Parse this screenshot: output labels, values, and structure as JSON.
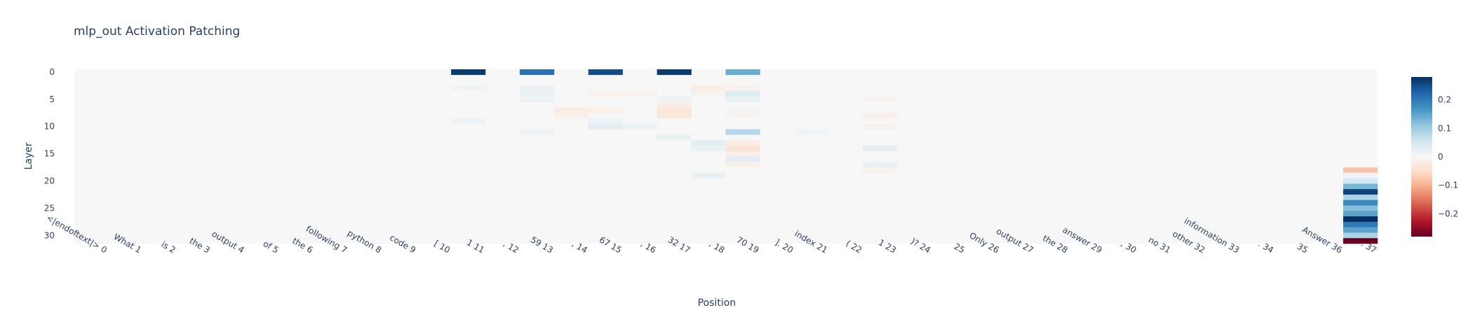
{
  "chart_data": {
    "type": "heatmap",
    "title": "mlp_out Activation Patching",
    "xlabel": "Position",
    "ylabel": "Layer",
    "x_categories": [
      "<|endoftext|> 0",
      "What 1",
      "is 2",
      "the 3",
      "output 4",
      "of 5",
      "the 6",
      "following 7",
      "python 8",
      "code 9",
      "[ 10",
      "1 11",
      ", 12",
      "59 13",
      ", 14",
      "67 15",
      ", 16",
      "32 17",
      ", 18",
      "70 19",
      "]. 20",
      "index 21",
      "( 22",
      "1 23",
      ")? 24",
      "25",
      "Only 26",
      "output 27",
      "the 28",
      "answer 29",
      ", 30",
      "no 31",
      "other 32",
      "information 33",
      ". 34",
      "35",
      "Answer 36",
      ": 37"
    ],
    "y_range": [
      0,
      31
    ],
    "y_ticks": [
      "0",
      "5",
      "10",
      "15",
      "20",
      "25",
      "30"
    ],
    "colorscale": "RdBu",
    "zrange": [
      -0.28,
      0.28
    ],
    "colorbar_ticks": [
      "0.2",
      "0.1",
      "0",
      "−0.1",
      "−0.2"
    ],
    "colorbar_tick_values": [
      0.2,
      0.1,
      0,
      -0.1,
      -0.2
    ],
    "cells": [
      {
        "pos": 11,
        "layer": 0,
        "value": 0.27
      },
      {
        "pos": 13,
        "layer": 0,
        "value": 0.21
      },
      {
        "pos": 15,
        "layer": 0,
        "value": 0.25
      },
      {
        "pos": 17,
        "layer": 0,
        "value": 0.27
      },
      {
        "pos": 19,
        "layer": 0,
        "value": 0.14
      },
      {
        "pos": 11,
        "layer": 3,
        "value": 0.01
      },
      {
        "pos": 13,
        "layer": 3,
        "value": 0.02
      },
      {
        "pos": 13,
        "layer": 4,
        "value": 0.02
      },
      {
        "pos": 13,
        "layer": 5,
        "value": 0.015
      },
      {
        "pos": 18,
        "layer": 3,
        "value": -0.02
      },
      {
        "pos": 18,
        "layer": 4,
        "value": -0.01
      },
      {
        "pos": 19,
        "layer": 3,
        "value": -0.01
      },
      {
        "pos": 19,
        "layer": 4,
        "value": 0.04
      },
      {
        "pos": 19,
        "layer": 5,
        "value": 0.02
      },
      {
        "pos": 16,
        "layer": 4,
        "value": -0.01
      },
      {
        "pos": 15,
        "layer": 4,
        "value": -0.015
      },
      {
        "pos": 17,
        "layer": 5,
        "value": 0.015
      },
      {
        "pos": 17,
        "layer": 6,
        "value": -0.02
      },
      {
        "pos": 17,
        "layer": 7,
        "value": -0.035
      },
      {
        "pos": 17,
        "layer": 8,
        "value": -0.03
      },
      {
        "pos": 14,
        "layer": 7,
        "value": -0.02
      },
      {
        "pos": 14,
        "layer": 8,
        "value": -0.015
      },
      {
        "pos": 15,
        "layer": 7,
        "value": -0.015
      },
      {
        "pos": 15,
        "layer": 9,
        "value": 0.015
      },
      {
        "pos": 15,
        "layer": 10,
        "value": 0.03
      },
      {
        "pos": 16,
        "layer": 10,
        "value": 0.02
      },
      {
        "pos": 19,
        "layer": 7,
        "value": 0.01
      },
      {
        "pos": 19,
        "layer": 8,
        "value": -0.01
      },
      {
        "pos": 19,
        "layer": 11,
        "value": 0.08
      },
      {
        "pos": 19,
        "layer": 13,
        "value": -0.02
      },
      {
        "pos": 19,
        "layer": 14,
        "value": -0.04
      },
      {
        "pos": 19,
        "layer": 15,
        "value": -0.02
      },
      {
        "pos": 19,
        "layer": 16,
        "value": 0.03
      },
      {
        "pos": 19,
        "layer": 17,
        "value": -0.015
      },
      {
        "pos": 18,
        "layer": 13,
        "value": 0.03
      },
      {
        "pos": 18,
        "layer": 14,
        "value": 0.02
      },
      {
        "pos": 18,
        "layer": 19,
        "value": 0.02
      },
      {
        "pos": 11,
        "layer": 9,
        "value": 0.015
      },
      {
        "pos": 13,
        "layer": 11,
        "value": 0.015
      },
      {
        "pos": 17,
        "layer": 12,
        "value": 0.02
      },
      {
        "pos": 21,
        "layer": 11,
        "value": 0.01
      },
      {
        "pos": 23,
        "layer": 5,
        "value": -0.01
      },
      {
        "pos": 23,
        "layer": 8,
        "value": -0.015
      },
      {
        "pos": 23,
        "layer": 10,
        "value": -0.01
      },
      {
        "pos": 23,
        "layer": 14,
        "value": 0.03
      },
      {
        "pos": 23,
        "layer": 17,
        "value": 0.02
      },
      {
        "pos": 23,
        "layer": 18,
        "value": -0.015
      },
      {
        "pos": 37,
        "layer": 18,
        "value": -0.08
      },
      {
        "pos": 37,
        "layer": 19,
        "value": 0.01
      },
      {
        "pos": 37,
        "layer": 20,
        "value": 0.05
      },
      {
        "pos": 37,
        "layer": 21,
        "value": 0.13
      },
      {
        "pos": 37,
        "layer": 22,
        "value": 0.26
      },
      {
        "pos": 37,
        "layer": 23,
        "value": 0.09
      },
      {
        "pos": 37,
        "layer": 24,
        "value": 0.18
      },
      {
        "pos": 37,
        "layer": 25,
        "value": 0.12
      },
      {
        "pos": 37,
        "layer": 26,
        "value": 0.15
      },
      {
        "pos": 37,
        "layer": 27,
        "value": 0.28
      },
      {
        "pos": 37,
        "layer": 28,
        "value": 0.2
      },
      {
        "pos": 37,
        "layer": 29,
        "value": 0.15
      },
      {
        "pos": 37,
        "layer": 30,
        "value": 0.09
      },
      {
        "pos": 37,
        "layer": 31,
        "value": -0.28
      }
    ]
  }
}
